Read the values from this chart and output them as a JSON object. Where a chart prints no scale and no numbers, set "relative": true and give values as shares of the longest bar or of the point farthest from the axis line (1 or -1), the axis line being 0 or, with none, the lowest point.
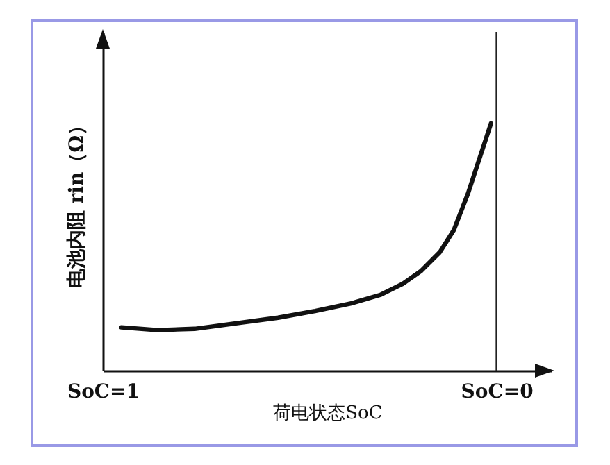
{
  "chart_data": {
    "type": "line",
    "relative": true,
    "xlabel": "荷电状态SoC",
    "ylabel": "电池内阻 rin（Ω）",
    "x": [
      0.953,
      0.861,
      0.767,
      0.649,
      0.555,
      0.461,
      0.367,
      0.296,
      0.238,
      0.191,
      0.144,
      0.108,
      0.073,
      0.044,
      0.014
    ],
    "series": [
      {
        "color": "#111111",
        "values": [
          0.175,
          0.164,
          0.169,
          0.194,
          0.214,
          0.241,
          0.273,
          0.306,
          0.351,
          0.404,
          0.479,
          0.57,
          0.714,
          0.855,
          1
        ]
      }
    ],
    "xlim": [
      1,
      -0.14
    ],
    "xticks": [
      {
        "value": 1,
        "label": "SoC=1"
      },
      {
        "value": 0,
        "label": "SoC=0"
      }
    ],
    "ref_lines": [
      {
        "axis": "x",
        "value": 0,
        "color": "#222222"
      }
    ],
    "grid": false,
    "marker": "none",
    "line_style": "solid"
  }
}
